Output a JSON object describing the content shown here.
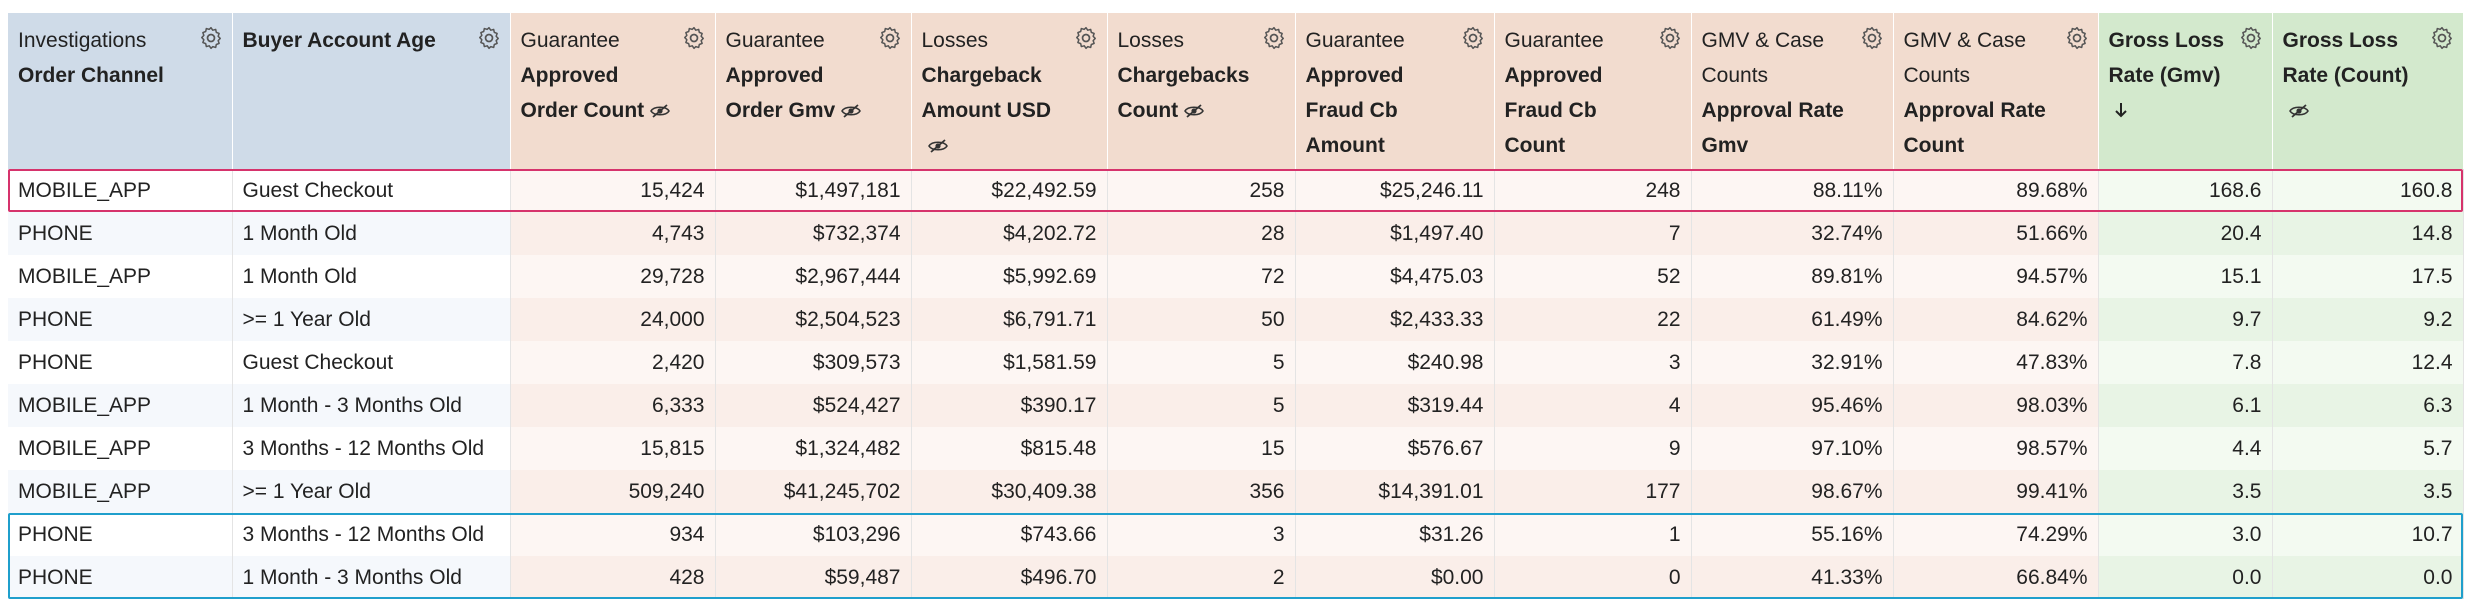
{
  "table": {
    "columns": [
      {
        "group": "Investigations",
        "label": "Order Channel"
      },
      {
        "label": "Buyer Account Age"
      },
      {
        "group": "Guarantee",
        "label": "Approved Order Count"
      },
      {
        "group": "Guarantee",
        "label": "Approved Order Gmv"
      },
      {
        "group": "Losses",
        "label": "Chargeback Amount USD"
      },
      {
        "group": "Losses",
        "label": "Chargebacks Count"
      },
      {
        "group": "Guarantee",
        "label": "Approved Fraud Cb Amount"
      },
      {
        "group": "Guarantee",
        "label": "Approved Fraud Cb Count"
      },
      {
        "group": "GMV & Case Counts",
        "label": "Approval Rate Gmv"
      },
      {
        "group": "GMV & Case Counts",
        "label": "Approval Rate Count"
      },
      {
        "label": "Gross Loss Rate (Gmv)"
      },
      {
        "label": "Gross Loss Rate (Count)"
      }
    ],
    "rows": [
      [
        "MOBILE_APP",
        "Guest Checkout",
        "15,424",
        "$1,497,181",
        "$22,492.59",
        "258",
        "$25,246.11",
        "248",
        "88.11%",
        "89.68%",
        "168.6",
        "160.8"
      ],
      [
        "PHONE",
        "1 Month Old",
        "4,743",
        "$732,374",
        "$4,202.72",
        "28",
        "$1,497.40",
        "7",
        "32.74%",
        "51.66%",
        "20.4",
        "14.8"
      ],
      [
        "MOBILE_APP",
        "1 Month Old",
        "29,728",
        "$2,967,444",
        "$5,992.69",
        "72",
        "$4,475.03",
        "52",
        "89.81%",
        "94.57%",
        "15.1",
        "17.5"
      ],
      [
        "PHONE",
        ">= 1 Year Old",
        "24,000",
        "$2,504,523",
        "$6,791.71",
        "50",
        "$2,433.33",
        "22",
        "61.49%",
        "84.62%",
        "9.7",
        "9.2"
      ],
      [
        "PHONE",
        "Guest Checkout",
        "2,420",
        "$309,573",
        "$1,581.59",
        "5",
        "$240.98",
        "3",
        "32.91%",
        "47.83%",
        "7.8",
        "12.4"
      ],
      [
        "MOBILE_APP",
        "1 Month - 3 Months Old",
        "6,333",
        "$524,427",
        "$390.17",
        "5",
        "$319.44",
        "4",
        "95.46%",
        "98.03%",
        "6.1",
        "6.3"
      ],
      [
        "MOBILE_APP",
        "3 Months - 12 Months Old",
        "15,815",
        "$1,324,482",
        "$815.48",
        "15",
        "$576.67",
        "9",
        "97.10%",
        "98.57%",
        "4.4",
        "5.7"
      ],
      [
        "MOBILE_APP",
        ">= 1 Year Old",
        "509,240",
        "$41,245,702",
        "$30,409.38",
        "356",
        "$14,391.01",
        "177",
        "98.67%",
        "99.41%",
        "3.5",
        "3.5"
      ],
      [
        "PHONE",
        "3 Months - 12 Months Old",
        "934",
        "$103,296",
        "$743.66",
        "3",
        "$31.26",
        "1",
        "55.16%",
        "74.29%",
        "3.0",
        "10.7"
      ],
      [
        "PHONE",
        "1 Month - 3 Months Old",
        "428",
        "$59,487",
        "$496.70",
        "2",
        "$0.00",
        "0",
        "41.33%",
        "66.84%",
        "0.0",
        "0.0"
      ]
    ]
  }
}
